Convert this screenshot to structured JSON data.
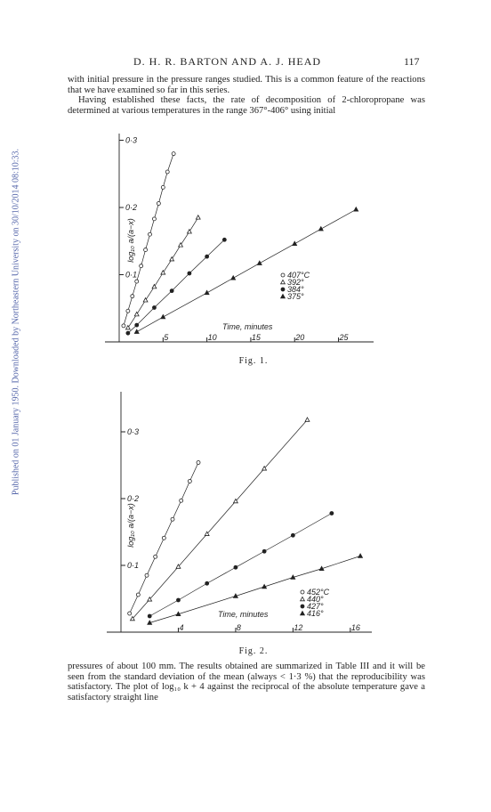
{
  "header": {
    "authors": "D. H. R. BARTON AND A. J. HEAD",
    "page": "117"
  },
  "text_top": [
    "with initial pressure in the pressure ranges studied.  This is a common feature of the reactions that we have examined so far in this series.",
    "Having established these facts, the rate of decomposition of 2-chloropropane was determined at various temperatures in the range 367°-406° using initial"
  ],
  "text_bottom": "pressures of about 100 mm.  The results obtained are summarized in Table III and it will be seen from the standard deviation of the mean (always < 1·3 %) that the reproducibility was satisfactory.  The plot of log₁₀ k + 4 against the reciprocal of the absolute temperature gave a satisfactory straight line",
  "sidebar": "Published on 01 January 1950. Downloaded by Northeastern University on 30/10/2014 08:10:33.",
  "chart_data": [
    {
      "type": "scatter",
      "caption": "Fig. 1.",
      "x_label": "Time, minutes",
      "y_label": "log₁₀ a/(a−x)",
      "xlim": [
        0,
        29
      ],
      "ylim": [
        0,
        0.31
      ],
      "xticks": [
        5,
        10,
        15,
        20,
        25
      ],
      "yticks": [
        {
          "value": 0.1,
          "label": "0·1"
        },
        {
          "value": 0.2,
          "label": "0·2"
        },
        {
          "value": 0.3,
          "label": "0·3"
        }
      ],
      "series": [
        {
          "name": "407°C",
          "marker": "open-circle",
          "color": "#222",
          "x": [
            0.5,
            1,
            1.5,
            2,
            2.5,
            3,
            3.5,
            4,
            4.5,
            5,
            5.5,
            6.2
          ],
          "values": [
            0.024,
            0.046,
            0.068,
            0.09,
            0.113,
            0.137,
            0.16,
            0.183,
            0.206,
            0.23,
            0.253,
            0.28
          ]
        },
        {
          "name": "392°",
          "marker": "open-triangle",
          "color": "#222",
          "x": [
            1,
            2,
            3,
            4,
            5,
            6,
            7,
            8,
            9
          ],
          "values": [
            0.021,
            0.041,
            0.062,
            0.082,
            0.103,
            0.123,
            0.144,
            0.164,
            0.185
          ]
        },
        {
          "name": "384°",
          "marker": "filled-circle",
          "color": "#222",
          "x": [
            1,
            2,
            4,
            6,
            8,
            10,
            12
          ],
          "values": [
            0.013,
            0.025,
            0.051,
            0.076,
            0.102,
            0.127,
            0.152
          ]
        },
        {
          "name": "375°",
          "marker": "filled-triangle",
          "color": "#222",
          "x": [
            2,
            5,
            10,
            13,
            16,
            20,
            23,
            27
          ],
          "values": [
            0.015,
            0.037,
            0.073,
            0.095,
            0.117,
            0.146,
            0.168,
            0.197
          ]
        }
      ]
    },
    {
      "type": "scatter",
      "caption": "Fig. 2.",
      "x_label": "Time, minutes",
      "y_label": "log₁₀ a/(a−x)",
      "xlim": [
        0,
        17.5
      ],
      "ylim": [
        0,
        0.36
      ],
      "xticks": [
        4,
        8,
        12,
        16
      ],
      "yticks": [
        {
          "value": 0.1,
          "label": "0·1"
        },
        {
          "value": 0.2,
          "label": "0·2"
        },
        {
          "value": 0.3,
          "label": "0·3"
        }
      ],
      "series": [
        {
          "name": "452°C",
          "marker": "open-circle",
          "color": "#222",
          "x": [
            0.6,
            1.2,
            1.8,
            2.4,
            3,
            3.6,
            4.2,
            4.8,
            5.4
          ],
          "values": [
            0.028,
            0.056,
            0.085,
            0.113,
            0.141,
            0.169,
            0.197,
            0.226,
            0.254
          ]
        },
        {
          "name": "440°",
          "marker": "open-triangle",
          "color": "#222",
          "x": [
            0.8,
            2,
            4,
            6,
            8,
            10,
            13
          ],
          "values": [
            0.02,
            0.049,
            0.098,
            0.147,
            0.196,
            0.245,
            0.318
          ]
        },
        {
          "name": "427°",
          "marker": "filled-circle",
          "color": "#222",
          "x": [
            2,
            4,
            6,
            8,
            10,
            12,
            14.7
          ],
          "values": [
            0.024,
            0.048,
            0.073,
            0.097,
            0.121,
            0.145,
            0.178
          ]
        },
        {
          "name": "416°",
          "marker": "filled-triangle",
          "color": "#222",
          "x": [
            2,
            4,
            8,
            10,
            12,
            14,
            16.7
          ],
          "values": [
            0.014,
            0.027,
            0.054,
            0.068,
            0.082,
            0.095,
            0.114
          ]
        }
      ]
    }
  ]
}
